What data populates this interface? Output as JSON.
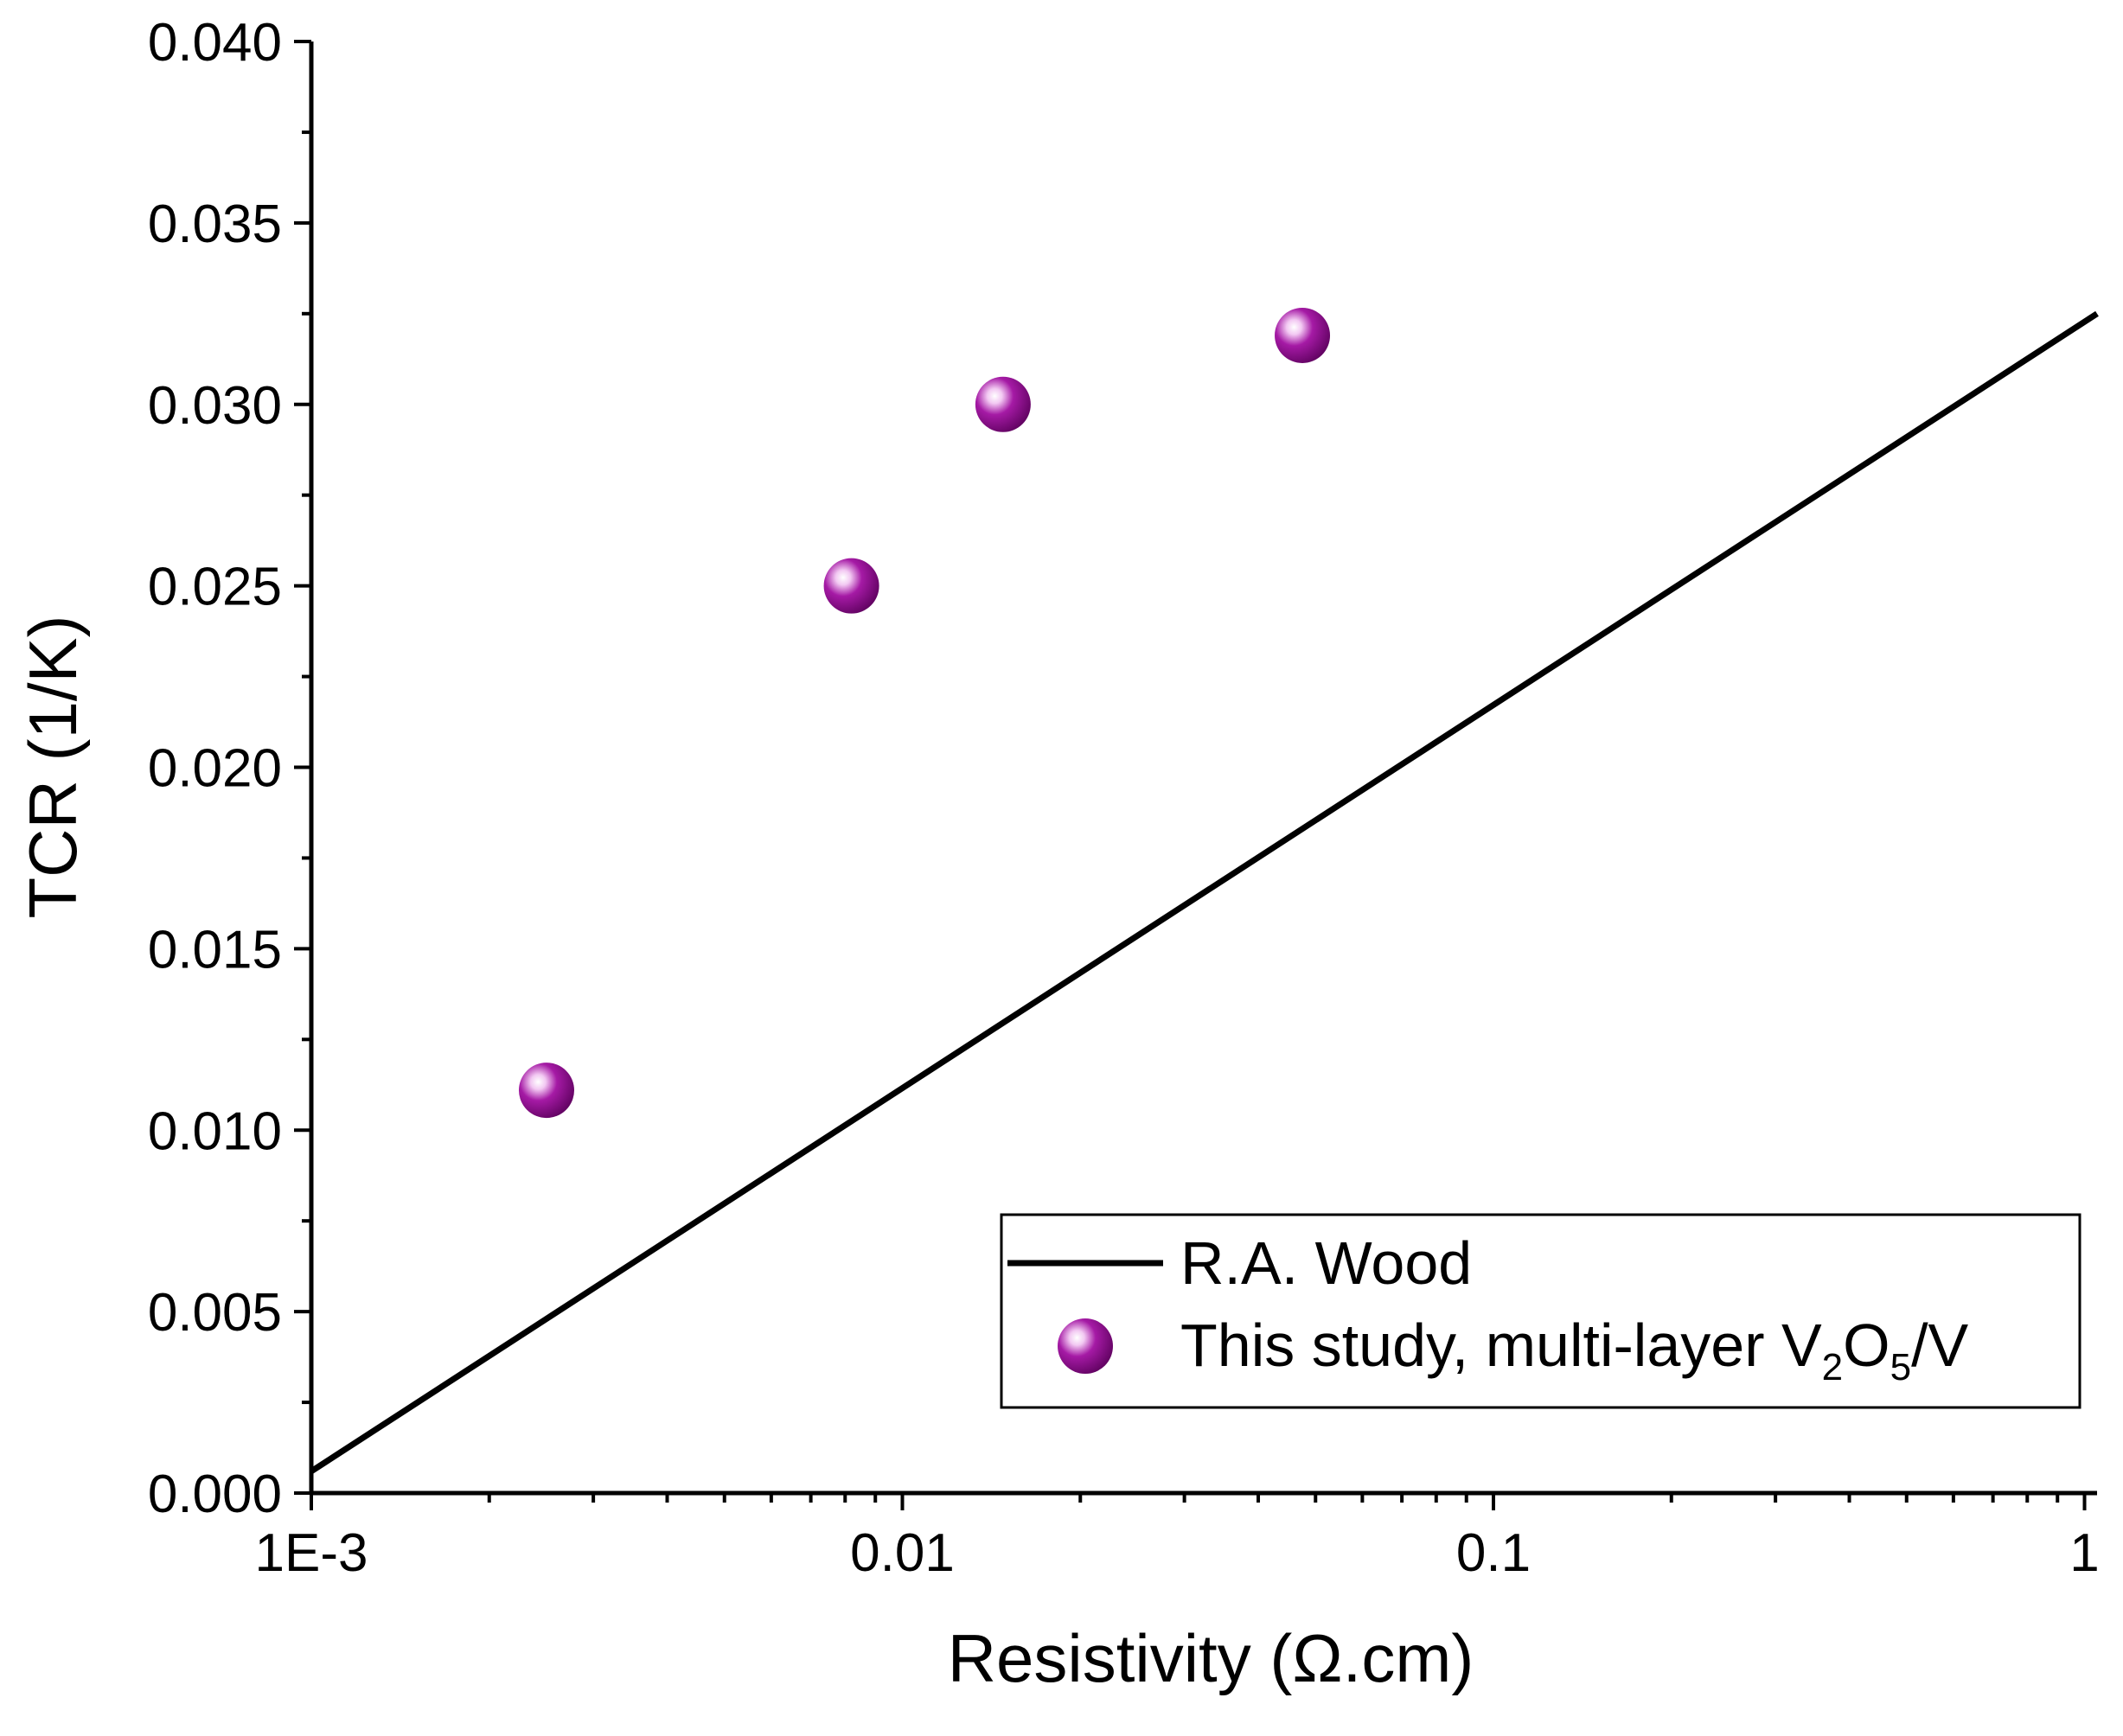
{
  "chart_data": {
    "type": "scatter",
    "title": "",
    "xlabel": "Resistivity (Ω.cm)",
    "ylabel": "TCR (1/K)",
    "xscale": "log",
    "xlim": [
      0.001,
      1.05
    ],
    "ylim": [
      0.0,
      0.04
    ],
    "x_ticks": [
      0.001,
      0.01,
      0.1,
      1
    ],
    "x_tick_labels": [
      "1E-3",
      "0.01",
      "0.1",
      "1"
    ],
    "y_ticks": [
      0.0,
      0.005,
      0.01,
      0.015,
      0.02,
      0.025,
      0.03,
      0.035,
      0.04
    ],
    "y_tick_labels": [
      "0.000",
      "0.005",
      "0.010",
      "0.015",
      "0.020",
      "0.025",
      "0.030",
      "0.035",
      "0.040"
    ],
    "grid": false,
    "legend_position": "bottom-right",
    "series": [
      {
        "name": "R.A. Wood",
        "kind": "line",
        "color": "#000000",
        "x": [
          0.001,
          1.05
        ],
        "y": [
          0.0006,
          0.0325
        ]
      },
      {
        "name": "This study, multi-layer V2O5/V",
        "kind": "scatter",
        "color": "#8B0A8B",
        "x": [
          0.0025,
          0.0082,
          0.0148,
          0.0475
        ],
        "y": [
          0.0111,
          0.025,
          0.03,
          0.0319
        ]
      }
    ],
    "legend": {
      "line_label": "R.A. Wood",
      "scatter_label_prefix": "This study, multi-layer V",
      "scatter_label_sub1": "2",
      "scatter_label_mid": "O",
      "scatter_label_sub2": "5",
      "scatter_label_suffix": "/V"
    }
  }
}
